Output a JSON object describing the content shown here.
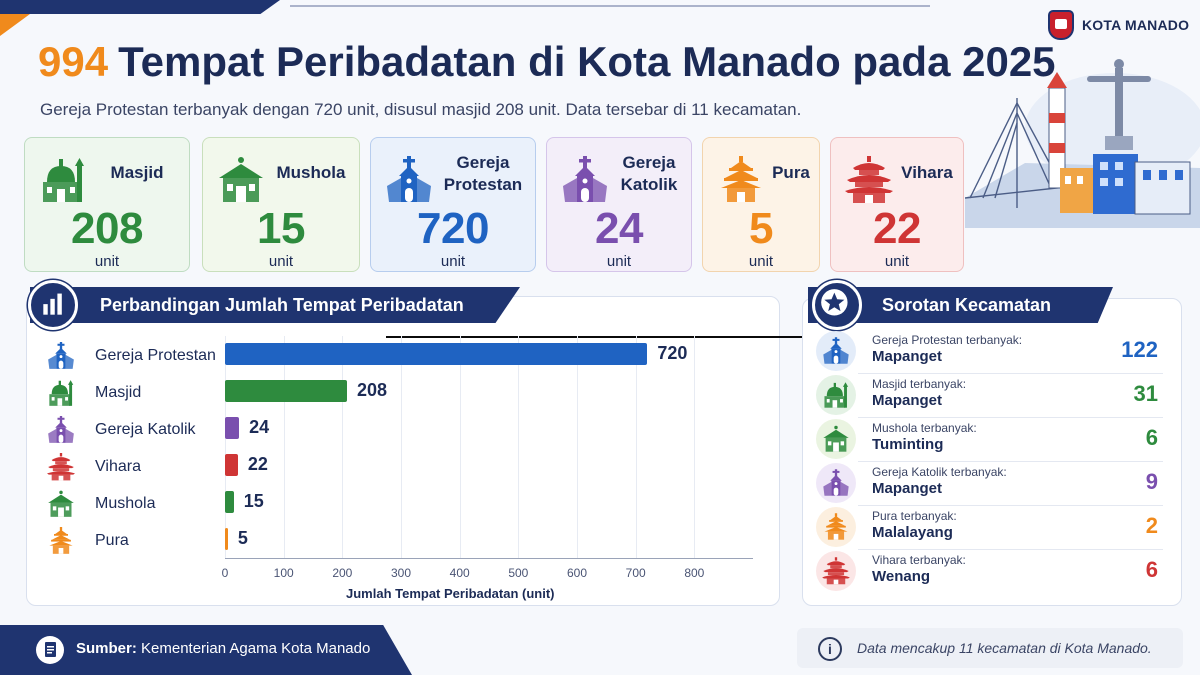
{
  "brand": {
    "name": "KOTA MANADO"
  },
  "header": {
    "title_number": "994",
    "title_rest": "Tempat Peribadatan di Kota Manado pada 2025",
    "subtitle": "Gereja Protestan terbanyak dengan 720 unit, disusul masjid 208 unit. Data tersebar di 11 kecamatan."
  },
  "cards": [
    {
      "name": "Masjid",
      "value": "208",
      "unit": "unit",
      "icon": "mosque-icon",
      "color": "#2e8b3e",
      "bg": "#eef7ee",
      "border": "#bfdcc2"
    },
    {
      "name": "Mushola",
      "value": "15",
      "unit": "unit",
      "icon": "mushola-icon",
      "color": "#2e8b3e",
      "bg": "#f2f8ec",
      "border": "#c9dfbc"
    },
    {
      "name": "Gereja Protestan",
      "value": "720",
      "unit": "unit",
      "icon": "protestant-church-icon",
      "color": "#1f63c2",
      "bg": "#eaf1fb",
      "border": "#b7cdee"
    },
    {
      "name": "Gereja Katolik",
      "value": "24",
      "unit": "unit",
      "icon": "catholic-church-icon",
      "color": "#7a4fae",
      "bg": "#f3eef9",
      "border": "#d5c5ea"
    },
    {
      "name": "Pura",
      "value": "5",
      "unit": "unit",
      "icon": "pura-icon",
      "color": "#f08a1c",
      "bg": "#fdf3e7",
      "border": "#f2d4ae"
    },
    {
      "name": "Vihara",
      "value": "22",
      "unit": "unit",
      "icon": "vihara-icon",
      "color": "#cf3535",
      "bg": "#fcecec",
      "border": "#efc0c0"
    }
  ],
  "chart_panel": {
    "title": "Perbandingan Jumlah Tempat Peribadatan"
  },
  "chart_data": {
    "type": "bar",
    "orientation": "horizontal",
    "categories": [
      "Gereja Protestan",
      "Masjid",
      "Gereja Katolik",
      "Vihara",
      "Mushola",
      "Pura"
    ],
    "values": [
      720,
      208,
      24,
      22,
      15,
      5
    ],
    "colors": [
      "#1f63c2",
      "#2e8b3e",
      "#7a4fae",
      "#cf3535",
      "#2e8b3e",
      "#f08a1c"
    ],
    "xlabel": "Jumlah Tempat Peribadatan (unit)",
    "ylabel": "",
    "xlim": [
      0,
      900
    ],
    "xticks": [
      "0",
      "100",
      "200",
      "300",
      "400",
      "500",
      "600",
      "700",
      "800"
    ],
    "grid": true
  },
  "highlights": {
    "title": "Sorotan Kecamatan",
    "items": [
      {
        "caption": "Gereja Protestan terbanyak:",
        "place": "Mapanget",
        "value": "122",
        "color": "#1f63c2",
        "bg": "#e3ecf9",
        "icon": "protestant-church-icon"
      },
      {
        "caption": "Masjid terbanyak:",
        "place": "Mapanget",
        "value": "31",
        "color": "#2e8b3e",
        "bg": "#e4f2e5",
        "icon": "mosque-icon"
      },
      {
        "caption": "Mushola terbanyak:",
        "place": "Tuminting",
        "value": "6",
        "color": "#2e8b3e",
        "bg": "#eaf4e1",
        "icon": "mushola-icon"
      },
      {
        "caption": "Gereja Katolik terbanyak:",
        "place": "Mapanget",
        "value": "9",
        "color": "#7a4fae",
        "bg": "#efe8f8",
        "icon": "catholic-church-icon"
      },
      {
        "caption": "Pura terbanyak:",
        "place": "Malalayang",
        "value": "2",
        "color": "#f08a1c",
        "bg": "#fcefdf",
        "icon": "pura-icon"
      },
      {
        "caption": "Vihara terbanyak:",
        "place": "Wenang",
        "value": "6",
        "color": "#cf3535",
        "bg": "#fbe6e6",
        "icon": "vihara-icon"
      }
    ]
  },
  "footer": {
    "source_label": "Sumber:",
    "source_text": "Kementerian Agama Kota Manado",
    "note": "Data mencakup 11 kecamatan di Kota Manado."
  }
}
